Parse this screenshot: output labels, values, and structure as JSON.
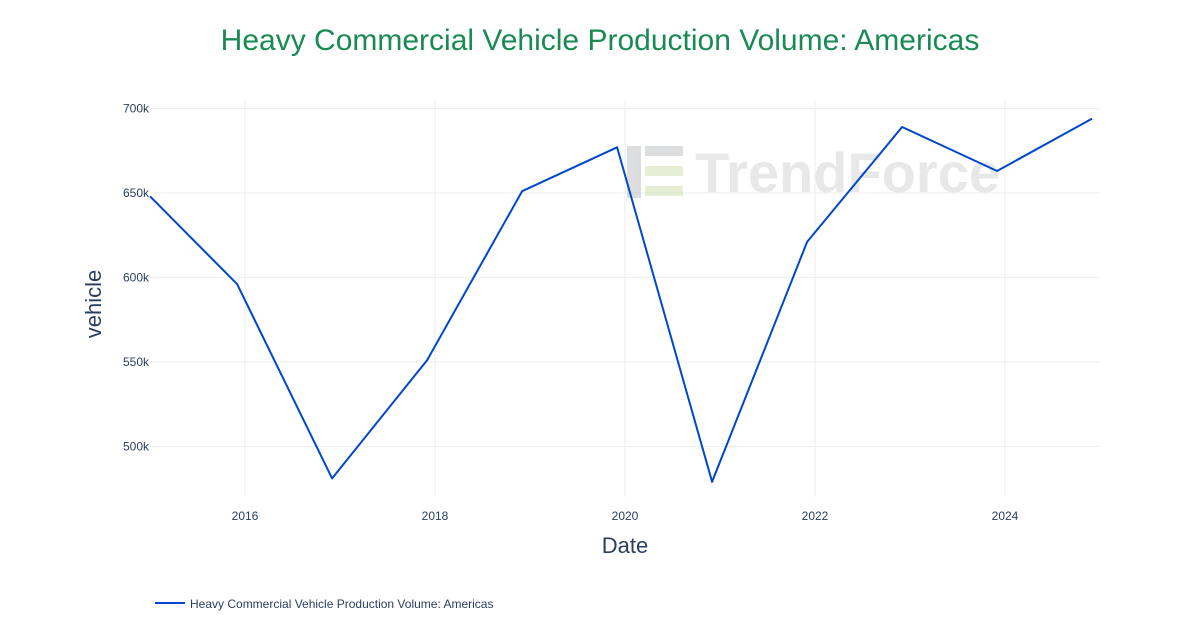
{
  "chart_data": {
    "type": "line",
    "title": "Heavy Commercial Vehicle Production Volume: Americas",
    "xlabel": "Date",
    "ylabel": "vehicle",
    "x": [
      "2015-01",
      "2015-12",
      "2016-12",
      "2017-12",
      "2018-12",
      "2019-12",
      "2020-12",
      "2021-12",
      "2022-12",
      "2023-12",
      "2024-12"
    ],
    "series": [
      {
        "name": "Heavy Commercial Vehicle Production Volume: Americas",
        "color": "#0047cc",
        "values": [
          648000,
          596000,
          481000,
          551000,
          651000,
          677000,
          479000,
          621000,
          689000,
          663000,
          694000
        ]
      }
    ],
    "xlim": [
      "2015-01",
      "2025-01"
    ],
    "ylim": [
      470000,
      705000
    ],
    "x_ticks": [
      "2016",
      "2018",
      "2020",
      "2022",
      "2024"
    ],
    "y_ticks": [
      500000,
      550000,
      600000,
      650000,
      700000
    ],
    "y_tick_labels": [
      "500k",
      "550k",
      "600k",
      "650k",
      "700k"
    ],
    "grid": true,
    "legend_position": "bottom-left"
  },
  "watermark": {
    "brand": "TrendForce",
    "icon": "trendforce-logo-icon"
  },
  "colors": {
    "title": "#1a8a55",
    "axis_text": "#2a3f5f",
    "grid": "#eeeeee"
  }
}
